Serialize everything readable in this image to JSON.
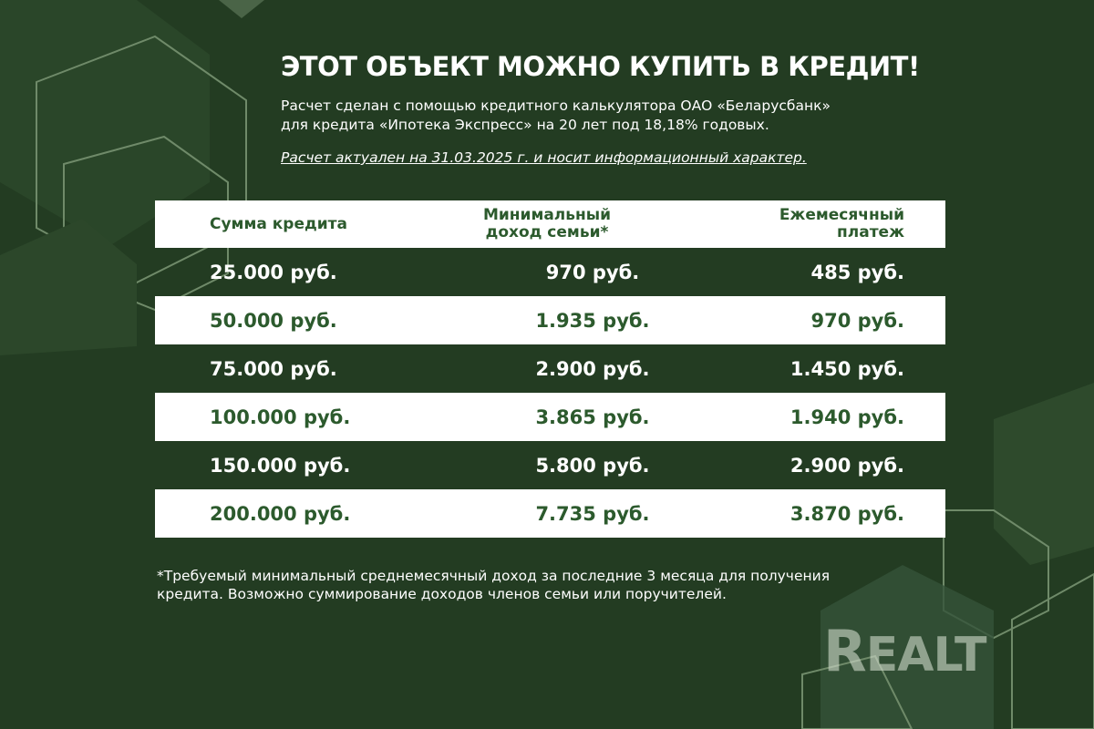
{
  "title": "ЭТОТ ОБЪЕКТ МОЖНО КУПИТЬ В КРЕДИТ!",
  "subtitle_line1": "Расчет сделан с помощью кредитного калькулятора ОАО «Беларусбанк»",
  "subtitle_line2": "для кредита «Ипотека Экспресс» на 20 лет под 18,18% годовых.",
  "note": "Расчет актуален на 31.03.2025 г. и носит информационный характер.",
  "table": {
    "headers": [
      "Сумма кредита",
      "Минимальный доход семьи*",
      "Ежемесячный платеж"
    ],
    "rows": [
      [
        "25.000 руб.",
        "970 руб.",
        "485 руб."
      ],
      [
        "50.000 руб.",
        "1.935 руб.",
        "970 руб."
      ],
      [
        "75.000 руб.",
        "2.900 руб.",
        "1.450 руб."
      ],
      [
        "100.000 руб.",
        "3.865 руб.",
        "1.940 руб."
      ],
      [
        "150.000 руб.",
        "5.800 руб.",
        "2.900 руб."
      ],
      [
        "200.000 руб.",
        "7.735 руб.",
        "3.870 руб."
      ]
    ]
  },
  "footnote": "*Требуемый минимальный среднемесячный доход за последние 3 месяца для получения кредита. Возможно суммирование доходов членов семьи или поручителей.",
  "logo": "REALT",
  "colors": {
    "background": "#233c22",
    "accent_text": "#2c5a2d",
    "row_light": "#ffffff"
  }
}
